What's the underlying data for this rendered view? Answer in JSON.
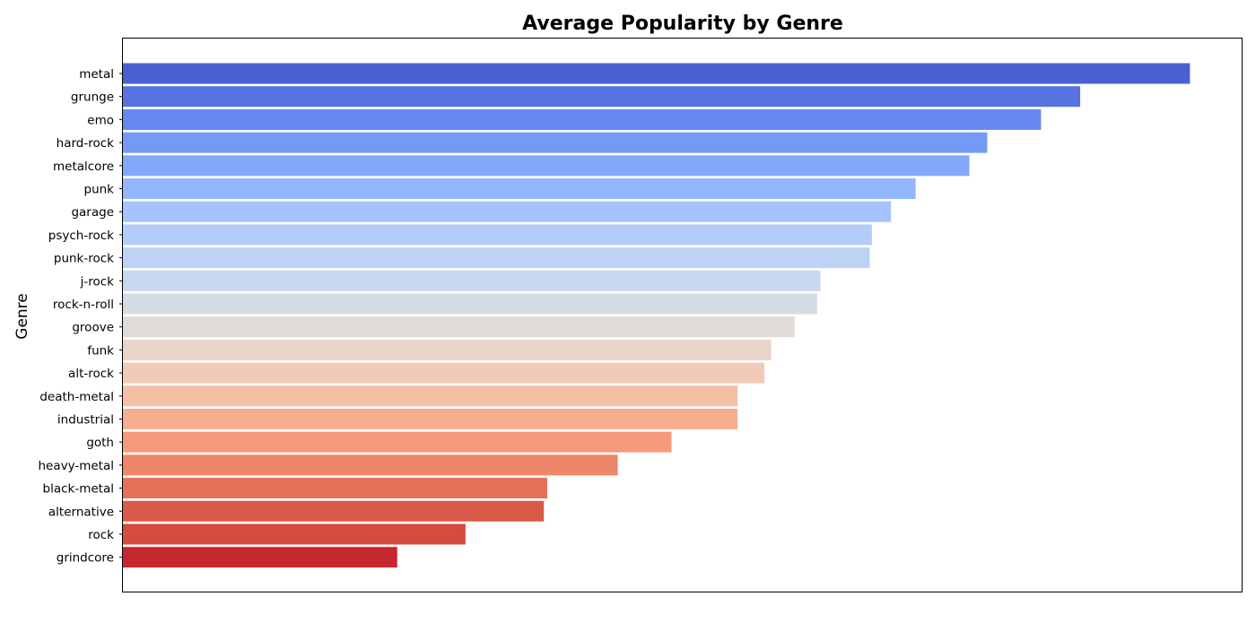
{
  "chart_data": {
    "type": "bar",
    "orientation": "horizontal",
    "title": "Average Popularity by Genre",
    "xlabel": "",
    "ylabel": "Genre",
    "xlim": [
      0,
      100
    ],
    "grid": false,
    "legend": "none",
    "colormap": "coolwarm",
    "categories": [
      "metal",
      "grunge",
      "emo",
      "hard-rock",
      "metalcore",
      "punk",
      "garage",
      "psych-rock",
      "punk-rock",
      "j-rock",
      "rock-n-roll",
      "groove",
      "funk",
      "alt-rock",
      "death-metal",
      "industrial",
      "goth",
      "heavy-metal",
      "black-metal",
      "alternative",
      "rock",
      "grindcore"
    ],
    "values": [
      95.3,
      85.5,
      82.0,
      77.2,
      75.6,
      70.8,
      68.6,
      66.9,
      66.7,
      62.3,
      62.0,
      60.0,
      57.9,
      57.3,
      54.9,
      54.9,
      49.0,
      44.2,
      37.9,
      37.6,
      30.6,
      24.5
    ],
    "colors": [
      "#4a5fd1",
      "#5773e0",
      "#6688ee",
      "#7599f6",
      "#84a7fc",
      "#94b6ff",
      "#a5c3fe",
      "#b3cdfb",
      "#bed2f6",
      "#cad8ef",
      "#d6dce4",
      "#e0dbd8",
      "#e9d5cb",
      "#f1cbb8",
      "#f5bfa6",
      "#f7ad90",
      "#f49a7b",
      "#ee8669",
      "#e57057",
      "#da5a49",
      "#d44b3f",
      "#c5282e"
    ]
  }
}
